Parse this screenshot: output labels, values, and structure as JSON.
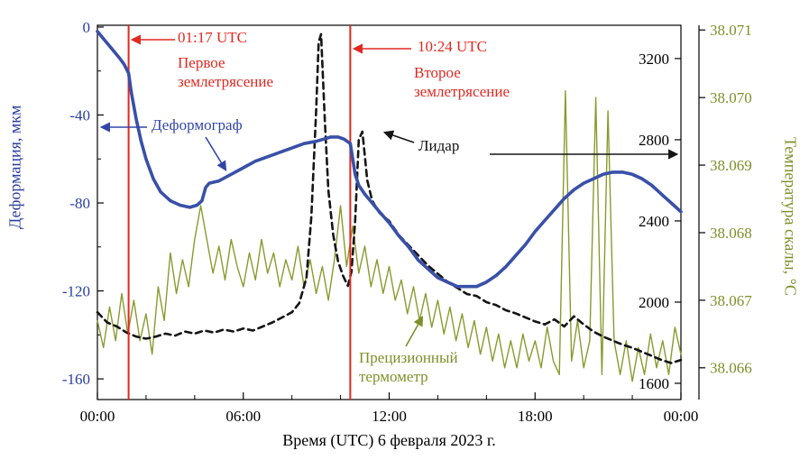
{
  "figure": {
    "background": "#ffffff"
  },
  "chart_data": {
    "type": "line",
    "title": "",
    "xlabel": "Время (UTC) 6 февраля 2023 г.",
    "x_ticks": [
      "00:00",
      "06:00",
      "12:00",
      "18:00",
      "00:00"
    ],
    "x_tick_hours": [
      0,
      6,
      12,
      18,
      24
    ],
    "x_range_hours": [
      0,
      24
    ],
    "grid": false,
    "axes": {
      "deformation": {
        "label": "Деформация, мкм",
        "color": "#2a3f9f",
        "ticks": [
          "0",
          "-40",
          "-80",
          "-120",
          "-160"
        ],
        "range": [
          -169.4,
          0.8
        ],
        "side": "left"
      },
      "lidar": {
        "label": "",
        "color": "#111111",
        "ticks": [
          "3200",
          "2800",
          "2400",
          "2000",
          "1600"
        ],
        "range": [
          1520,
          3364
        ],
        "side": "right-inner"
      },
      "temperature": {
        "label": "Температура скалы, °С",
        "color": "#7f8f2a",
        "ticks": [
          "38.071",
          "38.070",
          "38.069",
          "38.068",
          "38.067",
          "38.066"
        ],
        "range": [
          38.06553,
          38.07107
        ],
        "side": "right-outer"
      }
    },
    "events": [
      {
        "time_label": "01:17 UTC",
        "name": "Первое\nземлетрясение",
        "hour": 1.283,
        "color": "#e02820"
      },
      {
        "time_label": "10:24 UTC",
        "name": "Второе\nземлетрясение",
        "hour": 10.4,
        "color": "#e02820"
      }
    ],
    "series": [
      {
        "name": "Деформограф",
        "axis": "deformation",
        "color": "#3950a8",
        "width": 3.6,
        "dash": "",
        "points": [
          [
            0,
            -2
          ],
          [
            0.3,
            -6
          ],
          [
            0.6,
            -10
          ],
          [
            0.9,
            -14
          ],
          [
            1.1,
            -17
          ],
          [
            1.283,
            -21
          ],
          [
            1.4,
            -30
          ],
          [
            1.6,
            -42
          ],
          [
            1.8,
            -52
          ],
          [
            2,
            -60
          ],
          [
            2.3,
            -69
          ],
          [
            2.6,
            -75
          ],
          [
            3,
            -79
          ],
          [
            3.4,
            -81
          ],
          [
            3.8,
            -82
          ],
          [
            4.1,
            -81
          ],
          [
            4.3,
            -79
          ],
          [
            4.45,
            -73
          ],
          [
            4.6,
            -71
          ],
          [
            5,
            -70
          ],
          [
            5.5,
            -67
          ],
          [
            6,
            -64
          ],
          [
            6.5,
            -61
          ],
          [
            7,
            -59
          ],
          [
            7.5,
            -57
          ],
          [
            8,
            -55
          ],
          [
            8.5,
            -53
          ],
          [
            9,
            -52
          ],
          [
            9.3,
            -51
          ],
          [
            9.6,
            -50
          ],
          [
            9.9,
            -50
          ],
          [
            10.15,
            -51
          ],
          [
            10.4,
            -53
          ],
          [
            10.5,
            -60
          ],
          [
            10.6,
            -67
          ],
          [
            10.75,
            -72
          ],
          [
            11,
            -76
          ],
          [
            11.3,
            -80
          ],
          [
            11.6,
            -84
          ],
          [
            12,
            -89
          ],
          [
            12.4,
            -95
          ],
          [
            12.8,
            -100
          ],
          [
            13.2,
            -106
          ],
          [
            13.6,
            -110
          ],
          [
            14,
            -114
          ],
          [
            14.4,
            -116
          ],
          [
            14.8,
            -118
          ],
          [
            15.2,
            -118
          ],
          [
            15.6,
            -118
          ],
          [
            16,
            -116
          ],
          [
            16.4,
            -113
          ],
          [
            16.8,
            -109
          ],
          [
            17.2,
            -104
          ],
          [
            17.6,
            -99
          ],
          [
            18,
            -93
          ],
          [
            18.4,
            -88
          ],
          [
            18.8,
            -83
          ],
          [
            19.2,
            -78
          ],
          [
            19.6,
            -74
          ],
          [
            20,
            -71
          ],
          [
            20.4,
            -69
          ],
          [
            20.8,
            -67
          ],
          [
            21.2,
            -66
          ],
          [
            21.6,
            -66
          ],
          [
            22,
            -67
          ],
          [
            22.4,
            -69
          ],
          [
            22.8,
            -72
          ],
          [
            23.2,
            -76
          ],
          [
            23.6,
            -80
          ],
          [
            24,
            -84
          ]
        ]
      },
      {
        "name": "Лидар",
        "axis": "lidar",
        "color": "#151515",
        "width": 2.6,
        "dash": "7 5",
        "points": [
          [
            0,
            1950
          ],
          [
            0.4,
            1900
          ],
          [
            0.8,
            1880
          ],
          [
            1.2,
            1850
          ],
          [
            1.6,
            1830
          ],
          [
            2,
            1820
          ],
          [
            2.4,
            1830
          ],
          [
            2.8,
            1845
          ],
          [
            3.2,
            1835
          ],
          [
            3.6,
            1855
          ],
          [
            4,
            1845
          ],
          [
            4.4,
            1860
          ],
          [
            4.8,
            1850
          ],
          [
            5.2,
            1865
          ],
          [
            5.6,
            1855
          ],
          [
            6,
            1870
          ],
          [
            6.4,
            1860
          ],
          [
            6.8,
            1880
          ],
          [
            7.2,
            1900
          ],
          [
            7.6,
            1925
          ],
          [
            8,
            1950
          ],
          [
            8.3,
            1995
          ],
          [
            8.6,
            2120
          ],
          [
            8.8,
            2420
          ],
          [
            9,
            2950
          ],
          [
            9.1,
            3280
          ],
          [
            9.2,
            3320
          ],
          [
            9.35,
            2900
          ],
          [
            9.5,
            2550
          ],
          [
            9.7,
            2330
          ],
          [
            9.9,
            2200
          ],
          [
            10.1,
            2130
          ],
          [
            10.3,
            2080
          ],
          [
            10.45,
            2150
          ],
          [
            10.6,
            2400
          ],
          [
            10.75,
            2800
          ],
          [
            10.9,
            2840
          ],
          [
            11.1,
            2600
          ],
          [
            11.3,
            2500
          ],
          [
            11.6,
            2440
          ],
          [
            12,
            2400
          ],
          [
            12.4,
            2330
          ],
          [
            12.8,
            2280
          ],
          [
            13.2,
            2230
          ],
          [
            13.6,
            2180
          ],
          [
            14,
            2140
          ],
          [
            14.4,
            2100
          ],
          [
            14.8,
            2070
          ],
          [
            15.2,
            2040
          ],
          [
            15.6,
            2030
          ],
          [
            16,
            2000
          ],
          [
            16.4,
            1985
          ],
          [
            16.8,
            1960
          ],
          [
            17.2,
            1945
          ],
          [
            17.6,
            1925
          ],
          [
            18,
            1905
          ],
          [
            18.4,
            1890
          ],
          [
            18.8,
            1915
          ],
          [
            19.2,
            1880
          ],
          [
            19.6,
            1930
          ],
          [
            20,
            1890
          ],
          [
            20.4,
            1855
          ],
          [
            20.8,
            1830
          ],
          [
            21.2,
            1810
          ],
          [
            21.6,
            1790
          ],
          [
            22,
            1775
          ],
          [
            22.4,
            1755
          ],
          [
            22.8,
            1735
          ],
          [
            23.2,
            1715
          ],
          [
            23.6,
            1700
          ],
          [
            24,
            1715
          ]
        ]
      },
      {
        "name": "Прецизионный термометр",
        "axis": "temperature",
        "color": "#8a9a2e",
        "width": 1.4,
        "dash": "",
        "points": [
          [
            0,
            38.0667
          ],
          [
            0.25,
            38.0663
          ],
          [
            0.5,
            38.0669
          ],
          [
            0.75,
            38.0664
          ],
          [
            1,
            38.0671
          ],
          [
            1.25,
            38.0665
          ],
          [
            1.5,
            38.067
          ],
          [
            1.75,
            38.0664
          ],
          [
            2,
            38.0668
          ],
          [
            2.25,
            38.0662
          ],
          [
            2.5,
            38.0672
          ],
          [
            2.75,
            38.0667
          ],
          [
            3,
            38.0677
          ],
          [
            3.25,
            38.0671
          ],
          [
            3.5,
            38.0676
          ],
          [
            3.75,
            38.0672
          ],
          [
            4,
            38.0679
          ],
          [
            4.25,
            38.0684
          ],
          [
            4.5,
            38.0679
          ],
          [
            4.75,
            38.0674
          ],
          [
            5,
            38.0678
          ],
          [
            5.25,
            38.0673
          ],
          [
            5.5,
            38.0679
          ],
          [
            5.75,
            38.0675
          ],
          [
            6,
            38.0672
          ],
          [
            6.25,
            38.0677
          ],
          [
            6.5,
            38.0673
          ],
          [
            6.75,
            38.0679
          ],
          [
            7,
            38.0674
          ],
          [
            7.25,
            38.0677
          ],
          [
            7.5,
            38.0672
          ],
          [
            7.75,
            38.0676
          ],
          [
            8,
            38.0673
          ],
          [
            8.25,
            38.0678
          ],
          [
            8.5,
            38.0672
          ],
          [
            8.75,
            38.0676
          ],
          [
            9,
            38.0671
          ],
          [
            9.25,
            38.0675
          ],
          [
            9.5,
            38.067
          ],
          [
            9.75,
            38.0676
          ],
          [
            10,
            38.0684
          ],
          [
            10.25,
            38.0675
          ],
          [
            10.5,
            38.0681
          ],
          [
            10.75,
            38.0674
          ],
          [
            11,
            38.0678
          ],
          [
            11.25,
            38.0672
          ],
          [
            11.5,
            38.0676
          ],
          [
            11.75,
            38.0671
          ],
          [
            12,
            38.0675
          ],
          [
            12.25,
            38.067
          ],
          [
            12.5,
            38.0673
          ],
          [
            12.75,
            38.0668
          ],
          [
            13,
            38.0672
          ],
          [
            13.25,
            38.0667
          ],
          [
            13.5,
            38.0671
          ],
          [
            13.75,
            38.0666
          ],
          [
            14,
            38.067
          ],
          [
            14.25,
            38.0665
          ],
          [
            14.5,
            38.0669
          ],
          [
            14.75,
            38.0664
          ],
          [
            15,
            38.0668
          ],
          [
            15.25,
            38.0663
          ],
          [
            15.5,
            38.0667
          ],
          [
            15.75,
            38.0662
          ],
          [
            16,
            38.0666
          ],
          [
            16.25,
            38.0661
          ],
          [
            16.5,
            38.0665
          ],
          [
            16.75,
            38.066
          ],
          [
            17,
            38.0664
          ],
          [
            17.25,
            38.066
          ],
          [
            17.5,
            38.0665
          ],
          [
            17.75,
            38.0661
          ],
          [
            18,
            38.0664
          ],
          [
            18.25,
            38.066
          ],
          [
            18.5,
            38.0666
          ],
          [
            18.75,
            38.0661
          ],
          [
            19,
            38.0659
          ],
          [
            19.25,
            38.0701
          ],
          [
            19.5,
            38.0661
          ],
          [
            19.75,
            38.0667
          ],
          [
            20,
            38.066
          ],
          [
            20.25,
            38.0664
          ],
          [
            20.5,
            38.07
          ],
          [
            20.75,
            38.0659
          ],
          [
            21,
            38.0698
          ],
          [
            21.25,
            38.0664
          ],
          [
            21.5,
            38.0659
          ],
          [
            21.75,
            38.0664
          ],
          [
            22,
            38.0658
          ],
          [
            22.25,
            38.0663
          ],
          [
            22.5,
            38.0659
          ],
          [
            22.75,
            38.0665
          ],
          [
            23,
            38.066
          ],
          [
            23.25,
            38.0664
          ],
          [
            23.5,
            38.0659
          ],
          [
            23.75,
            38.0666
          ],
          [
            24,
            38.0662
          ]
        ]
      }
    ]
  },
  "annotations": {
    "thermometer_label": "Прецизионный\nтермометр"
  }
}
